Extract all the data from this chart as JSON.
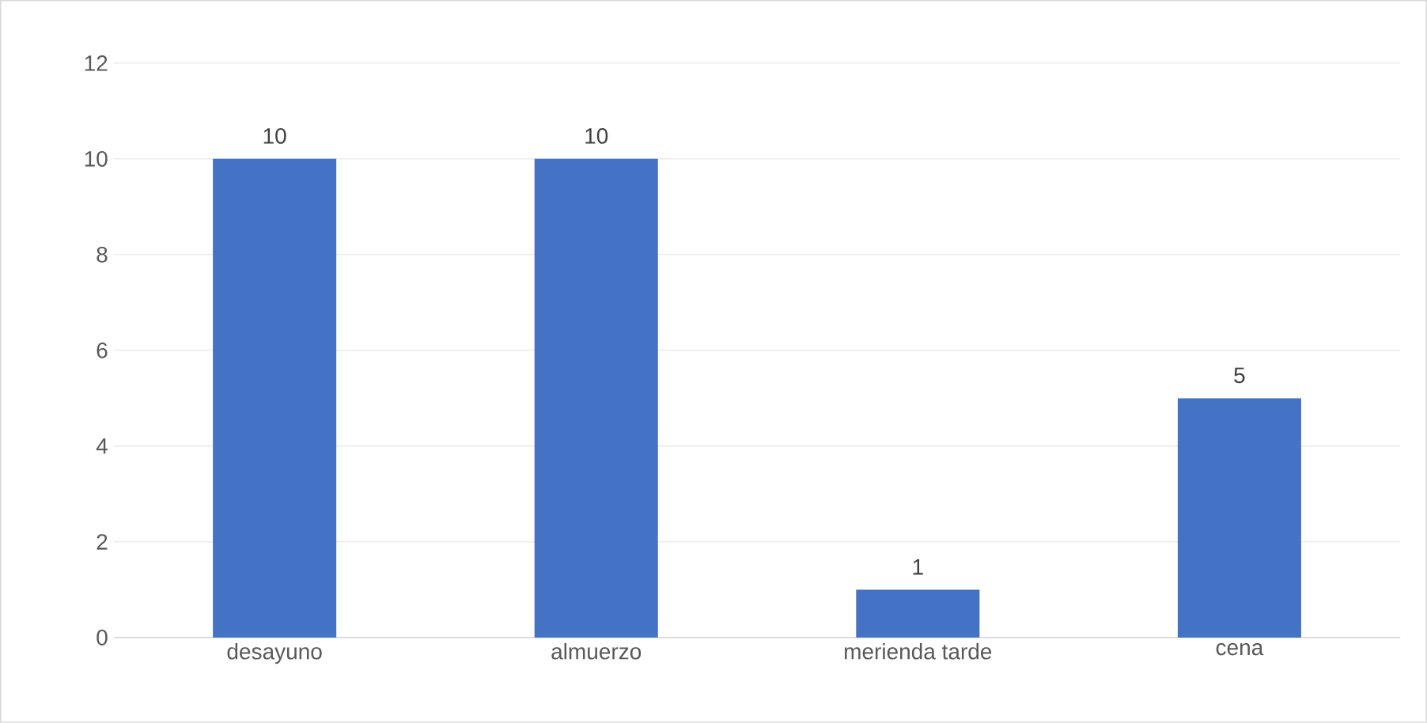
{
  "chart_data": {
    "type": "bar",
    "categories": [
      "desayuno",
      "almuerzo",
      "merienda tarde",
      "cena"
    ],
    "values": [
      10,
      10,
      1,
      5
    ],
    "color": "#4472c4",
    "ylim": [
      0,
      12
    ],
    "yticks": [
      0,
      2,
      4,
      6,
      8,
      10,
      12
    ],
    "grid": "y",
    "data_labels": true
  }
}
